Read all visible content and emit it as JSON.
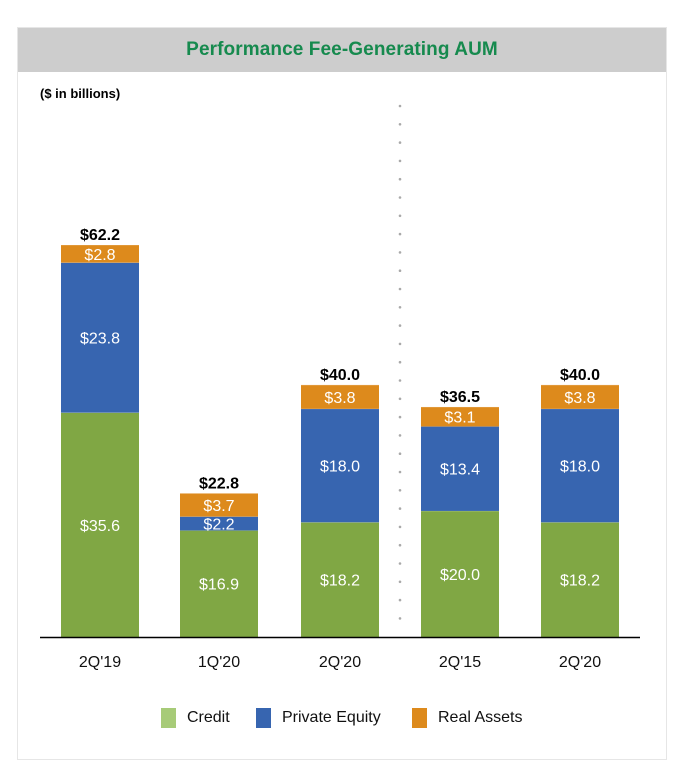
{
  "header": {
    "title": "Performance Fee-Generating AUM"
  },
  "units_label": "($ in billions)",
  "colors": {
    "credit": "#80a744",
    "private_equity": "#3765b0",
    "real_assets": "#dd8a1c",
    "credit_legend": "#a7cb78",
    "title": "#168a4e",
    "header_bg": "#cdcdcd"
  },
  "chart_data": {
    "type": "bar",
    "stacked": true,
    "title": "Performance Fee-Generating AUM",
    "subtitle": "($ in billions)",
    "xlabel": "",
    "ylabel": "",
    "ylim": [
      0,
      62.2
    ],
    "grid": false,
    "legend_position": "bottom",
    "categories": [
      "2Q'19",
      "1Q'20",
      "2Q'20",
      "2Q'15",
      "2Q'20"
    ],
    "series": [
      {
        "name": "Credit",
        "key": "credit",
        "values": [
          35.6,
          16.9,
          18.2,
          20.0,
          18.2
        ],
        "labels": [
          "$35.6",
          "$16.9",
          "$18.2",
          "$20.0",
          "$18.2"
        ]
      },
      {
        "name": "Private Equity",
        "key": "private_equity",
        "values": [
          23.8,
          2.2,
          18.0,
          13.4,
          18.0
        ],
        "labels": [
          "$23.8",
          "$2.2",
          "$18.0",
          "$13.4",
          "$18.0"
        ]
      },
      {
        "name": "Real Assets",
        "key": "real_assets",
        "values": [
          2.8,
          3.7,
          3.8,
          3.1,
          3.8
        ],
        "labels": [
          "$2.8",
          "$3.7",
          "$3.8",
          "$3.1",
          "$3.8"
        ]
      }
    ],
    "totals": [
      62.2,
      22.8,
      40.0,
      36.5,
      40.0
    ],
    "total_labels": [
      "$62.2",
      "$22.8",
      "$40.0",
      "$36.5",
      "$40.0"
    ],
    "annotations": [
      "dotted vertical separator between 2Q'20 and 2Q'15"
    ]
  },
  "legend": [
    {
      "label": "Credit",
      "key": "credit_legend"
    },
    {
      "label": "Private Equity",
      "key": "private_equity"
    },
    {
      "label": "Real Assets",
      "key": "real_assets"
    }
  ]
}
